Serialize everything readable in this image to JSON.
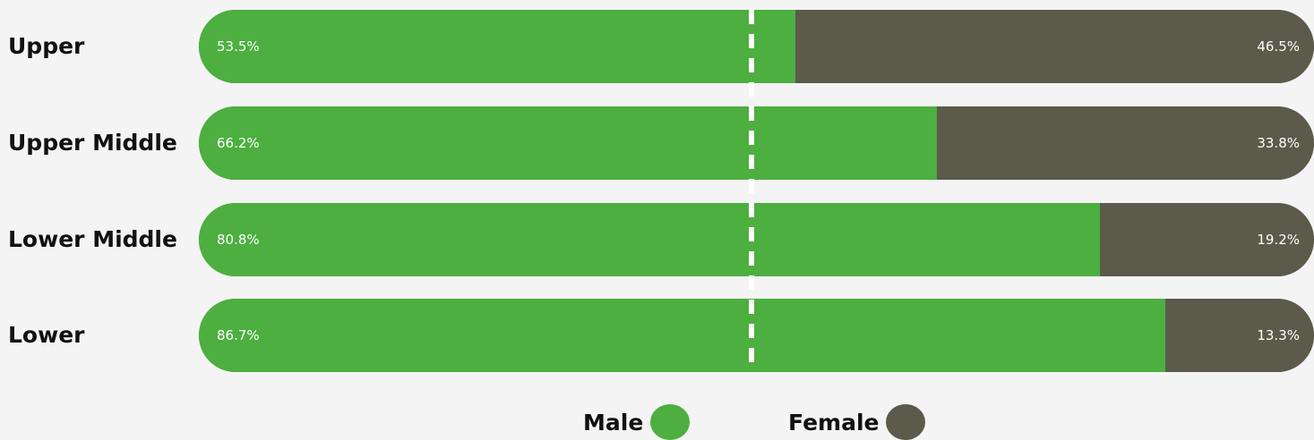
{
  "chart_data": {
    "type": "bar",
    "stacked": true,
    "orientation": "horizontal",
    "categories": [
      "Upper",
      "Upper Middle",
      "Lower Middle",
      "Lower"
    ],
    "series": [
      {
        "name": "Male",
        "color": "#4caf3f",
        "values": [
          53.5,
          66.2,
          80.8,
          86.7
        ],
        "labels": [
          "53.5%",
          "66.2%",
          "80.8%",
          "86.7%"
        ]
      },
      {
        "name": "Female",
        "color": "#5b5a4b",
        "values": [
          46.5,
          33.8,
          19.2,
          13.3
        ],
        "labels": [
          "46.5%",
          "33.8%",
          "19.2%",
          "13.3%"
        ]
      }
    ],
    "xlim": [
      0,
      100
    ],
    "reference_line": 50,
    "legend": "bottom-center",
    "grid": false
  }
}
